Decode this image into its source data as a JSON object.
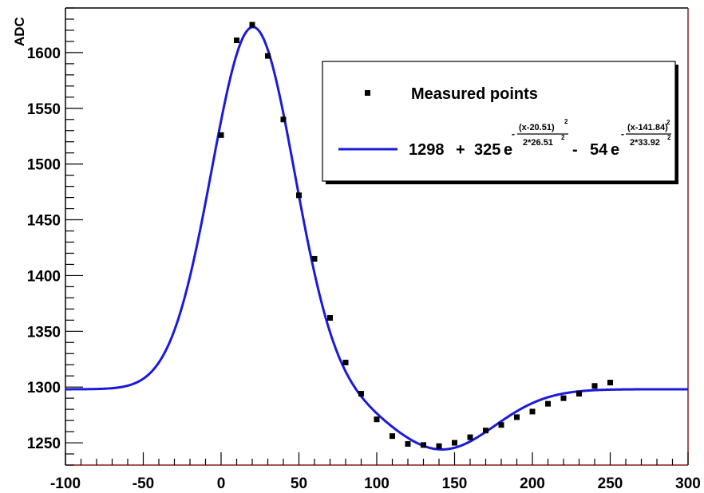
{
  "chart_data": {
    "type": "scatter",
    "title": "",
    "xlabel": "",
    "ylabel": "ADC",
    "xlim": [
      -100,
      300
    ],
    "ylim": [
      1230,
      1640
    ],
    "x_ticks": [
      -100,
      -50,
      0,
      50,
      100,
      150,
      200,
      250,
      300
    ],
    "y_ticks": [
      1250,
      1300,
      1350,
      1400,
      1450,
      1500,
      1550,
      1600
    ],
    "grid": false,
    "legend_position": "top-right",
    "series": [
      {
        "name": "Measured points",
        "type": "scatter",
        "color": "#000000",
        "marker": "square",
        "x": [
          0,
          10,
          20,
          30,
          40,
          50,
          60,
          70,
          80,
          90,
          100,
          110,
          120,
          130,
          140,
          150,
          160,
          170,
          180,
          190,
          200,
          210,
          220,
          230,
          240,
          250
        ],
        "y": [
          1526,
          1611,
          1625,
          1597,
          1540,
          1472,
          1415,
          1362,
          1322,
          1294,
          1271,
          1256,
          1249,
          1248,
          1247,
          1250,
          1255,
          1261,
          1266,
          1273,
          1278,
          1285,
          1290,
          1294,
          1301,
          1304
        ]
      },
      {
        "name": "1298 + 325 e - 54 e",
        "type": "line",
        "color": "#1a1adb",
        "function": {
          "baseline": 1298,
          "gaussians": [
            {
              "amplitude": 325,
              "mean": 20.51,
              "sigma": 26.51
            },
            {
              "amplitude": -54,
              "mean": 141.84,
              "sigma": 33.92
            }
          ]
        },
        "x_range": [
          -100,
          300
        ]
      }
    ]
  },
  "legend": {
    "points_label": "Measured points",
    "fit": {
      "const": "1298",
      "plus": "+",
      "amp1": "325",
      "e1": "e",
      "exp1_sign": "-",
      "exp1_num": "(x-20.51)",
      "exp1_num_pow": "2",
      "exp1_den": "2*26.51",
      "exp1_den_pow": "2",
      "minus": "-",
      "amp2": "54",
      "e2": "e",
      "exp2_sign": "-",
      "exp2_num": "(x-141.84)",
      "exp2_num_pow": "2",
      "exp2_den": "2*33.92",
      "exp2_den_pow": "2"
    }
  }
}
